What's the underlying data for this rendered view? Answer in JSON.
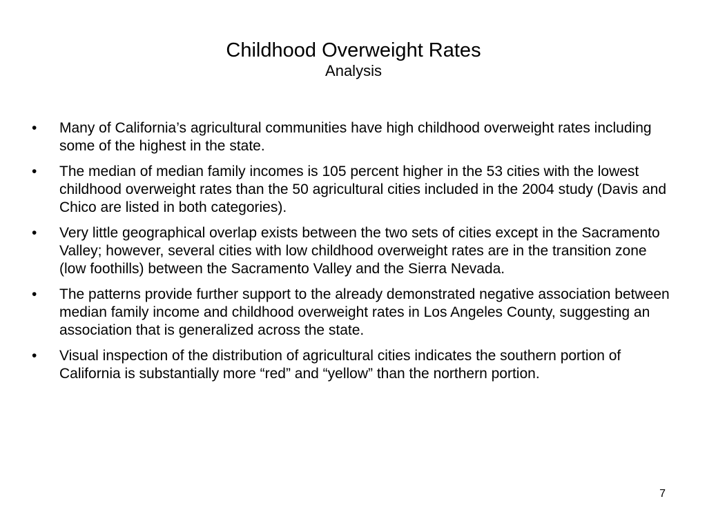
{
  "slide": {
    "title": "Childhood Overweight Rates",
    "subtitle": "Analysis",
    "bullet_marker": "•",
    "bullets": [
      "Many of California’s agricultural communities have high childhood overweight rates including some of the highest in the state.",
      "The median of median family incomes is 105 percent higher in the 53 cities with the lowest childhood overweight rates than the 50 agricultural cities included in the 2004 study (Davis and Chico are listed in both categories).",
      "Very little geographical overlap exists between the two sets of cities except in the Sacramento Valley; however, several cities with low childhood overweight rates are in the transition zone (low foothills) between the Sacramento Valley and the Sierra Nevada.",
      "The patterns provide further support to the already demonstrated negative association between median family income and childhood overweight rates in Los Angeles County, suggesting an association that is generalized across the state.",
      "Visual inspection of the distribution of agricultural cities indicates the southern portion of California is substantially more “red” and “yellow” than the northern portion."
    ],
    "page_number": "7"
  }
}
